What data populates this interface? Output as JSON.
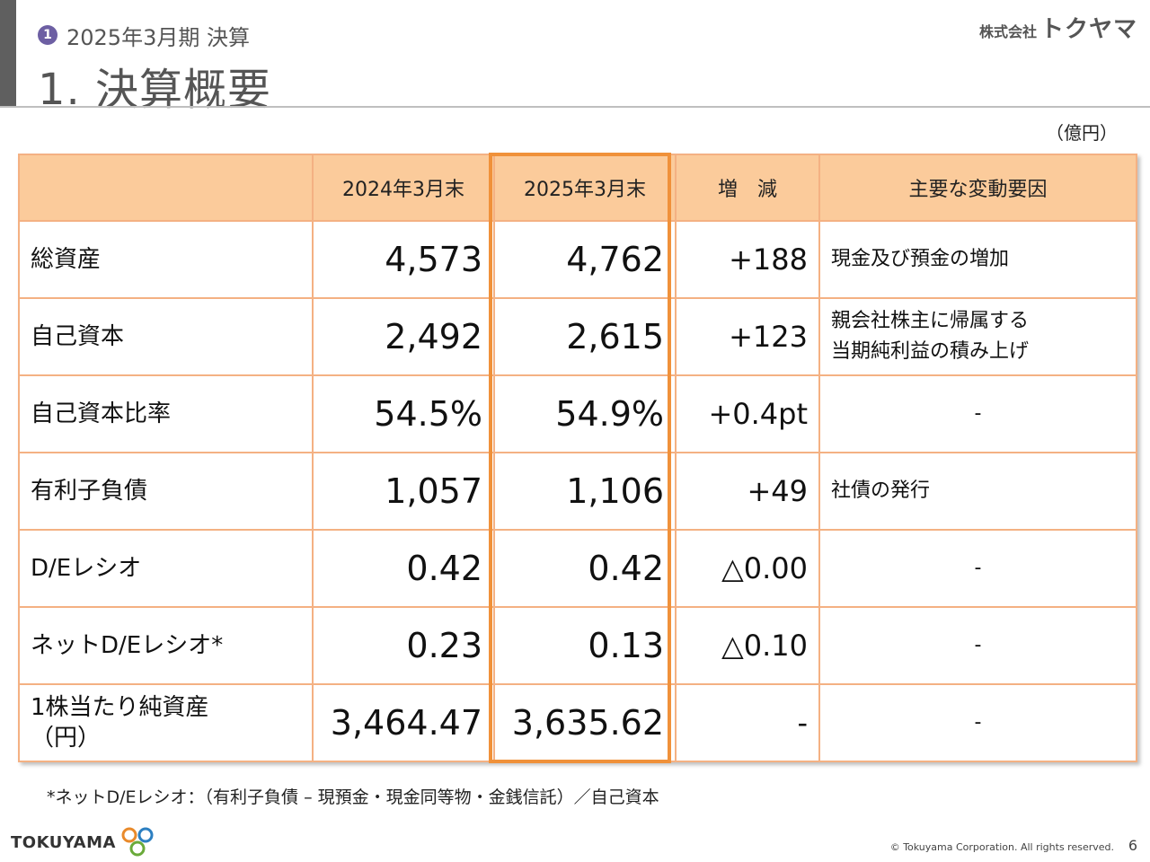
{
  "header": {
    "step_number": "1",
    "section": "2025年3月期 決算",
    "title": "1. 決算概要",
    "company_small": "株式会社",
    "company_name": "トクヤマ"
  },
  "unit": "（億円）",
  "table": {
    "columns": [
      "",
      "2024年3月末",
      "2025年3月末",
      "増　減",
      "主要な変動要因"
    ],
    "rows": [
      {
        "item": "総資産",
        "prev": "4,573",
        "curr": "4,762",
        "diff": "+188",
        "reason": "現金及び預金の増加"
      },
      {
        "item": "自己資本",
        "prev": "2,492",
        "curr": "2,615",
        "diff": "+123",
        "reason": "親会社株主に帰属する\n当期純利益の積み上げ"
      },
      {
        "item": "自己資本比率",
        "prev": "54.5%",
        "curr": "54.9%",
        "diff": "+0.4pt",
        "reason": "-"
      },
      {
        "item": "有利子負債",
        "prev": "1,057",
        "curr": "1,106",
        "diff": "+49",
        "reason": "社債の発行"
      },
      {
        "item": "D/Eレシオ",
        "prev": "0.42",
        "curr": "0.42",
        "diff": "△0.00",
        "reason": "-"
      },
      {
        "item": "ネットD/Eレシオ*",
        "prev": "0.23",
        "curr": "0.13",
        "diff": "△0.10",
        "reason": "-"
      },
      {
        "item": "1株当たり純資産\n（円）",
        "prev": "3,464.47",
        "curr": "3,635.62",
        "diff": "-",
        "reason": "-"
      }
    ]
  },
  "footnote": "*ネットD/Eレシオ：（有利子負債 – 現預金・現金同等物・金銭信託）／自己資本",
  "footer": {
    "logo_text": "TOKUYAMA",
    "copyright": "© Tokuyama Corporation. All rights reserved.",
    "page_number": "6"
  },
  "colors": {
    "header_fill": "#fbcb9b",
    "border": "#f4b183",
    "highlight": "#f0913a",
    "badge": "#6d5fa3",
    "title_gray": "#555555"
  }
}
